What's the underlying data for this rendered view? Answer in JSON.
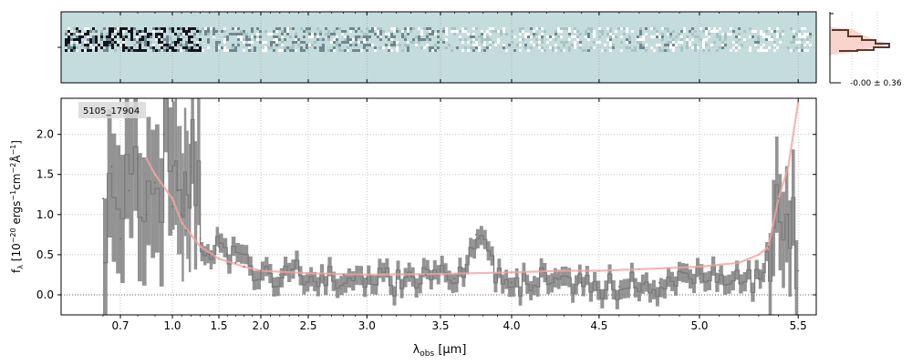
{
  "chart_data": [
    {
      "type": "heatmap",
      "panel": "2d-spectrum",
      "background_color": "#c5dcdc",
      "grid": true
    },
    {
      "type": "histogram",
      "panel": "pixel-distribution",
      "annotation": "-0.00 ± 0.36",
      "colors": {
        "fill": "#f9d3cc",
        "outline": "#5a3a2a"
      }
    },
    {
      "type": "line",
      "panel": "1d-spectrum",
      "object_label": "5105_17904",
      "xlabel_main": "λ",
      "xlabel_sub": "obs",
      "xlabel_unit": " [μm]",
      "ylabel": "f_λ [10^-20 ergs^-1 cm^-2 Å^-1]",
      "ylabel_parts": {
        "f": "f",
        "sub": "λ",
        "open": " [10",
        "e1": "−20",
        "t1": " ergs",
        "e2": "−1",
        "t2": "cm",
        "e3": "−2",
        "t3": "Å",
        "e4": "−1",
        "close": "]"
      },
      "xticks": [
        "0.7",
        "1.0",
        "1.5",
        "2.0",
        "2.5",
        "3.0",
        "3.5",
        "4.0",
        "4.5",
        "5.0",
        "5.5"
      ],
      "xtick_values": [
        0.7,
        1.0,
        1.5,
        2.0,
        2.5,
        3.0,
        3.5,
        4.0,
        4.5,
        5.0,
        5.5
      ],
      "yticks": [
        "0.0",
        "0.5",
        "1.0",
        "1.5",
        "2.0"
      ],
      "ytick_values": [
        0.0,
        0.5,
        1.0,
        1.5,
        2.0
      ],
      "ylim": [
        -0.25,
        2.45
      ],
      "grid": true,
      "series": [
        {
          "name": "",
          "color": "#808080",
          "x": [
            0.6,
            0.65,
            0.7,
            0.75,
            0.8,
            0.85,
            0.9,
            0.95,
            1.0,
            1.05,
            1.1,
            1.15,
            1.2,
            1.3,
            1.4,
            1.5,
            1.6,
            1.7,
            1.8,
            1.9,
            2.0,
            2.2,
            2.4,
            2.6,
            2.8,
            3.0,
            3.2,
            3.4,
            3.6,
            3.75,
            3.9,
            4.0,
            4.2,
            4.4,
            4.6,
            4.8,
            5.0,
            5.1,
            5.2,
            5.3,
            5.35,
            5.4,
            5.45,
            5.5
          ],
          "values": [
            1.2,
            1.6,
            0.7,
            1.3,
            1.7,
            1.0,
            1.4,
            2.0,
            1.1,
            1.3,
            1.0,
            0.8,
            1.6,
            0.7,
            0.5,
            0.6,
            0.5,
            0.4,
            0.35,
            0.3,
            0.3,
            0.25,
            0.3,
            0.2,
            0.25,
            0.2,
            0.15,
            0.25,
            0.2,
            0.75,
            0.2,
            0.15,
            0.2,
            0.15,
            0.1,
            0.15,
            0.2,
            0.3,
            0.15,
            0.2,
            0.6,
            1.2,
            1.0,
            0.3
          ]
        },
        {
          "name": "",
          "color": "#f4a3a3",
          "x": [
            0.85,
            0.9,
            1.0,
            1.1,
            1.2,
            1.3,
            1.5,
            1.8,
            2.0,
            2.5,
            3.0,
            3.5,
            4.0,
            4.3,
            4.5,
            4.7,
            5.0,
            5.2,
            5.3,
            5.35,
            5.4,
            5.45,
            5.5
          ],
          "values": [
            1.7,
            1.5,
            1.2,
            0.9,
            0.75,
            0.6,
            0.45,
            0.35,
            0.3,
            0.27,
            0.25,
            0.26,
            0.28,
            0.3,
            0.3,
            0.32,
            0.35,
            0.4,
            0.5,
            0.6,
            1.2,
            1.6,
            2.4
          ]
        }
      ]
    }
  ]
}
